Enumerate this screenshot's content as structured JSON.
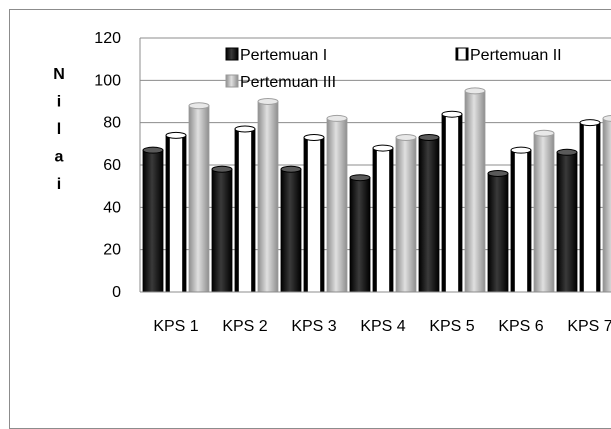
{
  "chart_data": {
    "type": "bar",
    "title": "",
    "xlabel": "",
    "ylabel": "Nilai",
    "ylim": [
      0,
      120
    ],
    "yticks": [
      "0",
      "20",
      "40",
      "60",
      "80",
      "100",
      "120"
    ],
    "grid": true,
    "legend_placement": "top",
    "categories": [
      "KPS 1",
      "KPS 2",
      "KPS 3",
      "KPS 4",
      "KPS 5",
      "KPS 6",
      "KPS 7"
    ],
    "series": [
      {
        "name": "Pertemuan I",
        "color": "#111111",
        "values": [
          67,
          58,
          58,
          54,
          73,
          56,
          66
        ]
      },
      {
        "name": "Pertemuan II",
        "color": "#ffffff",
        "values": [
          74,
          77,
          73,
          68,
          84,
          67,
          80
        ]
      },
      {
        "name": "Pertemuan III",
        "color": "#bdbdbd",
        "values": [
          88,
          90,
          82,
          73,
          95,
          75,
          82
        ]
      }
    ]
  }
}
